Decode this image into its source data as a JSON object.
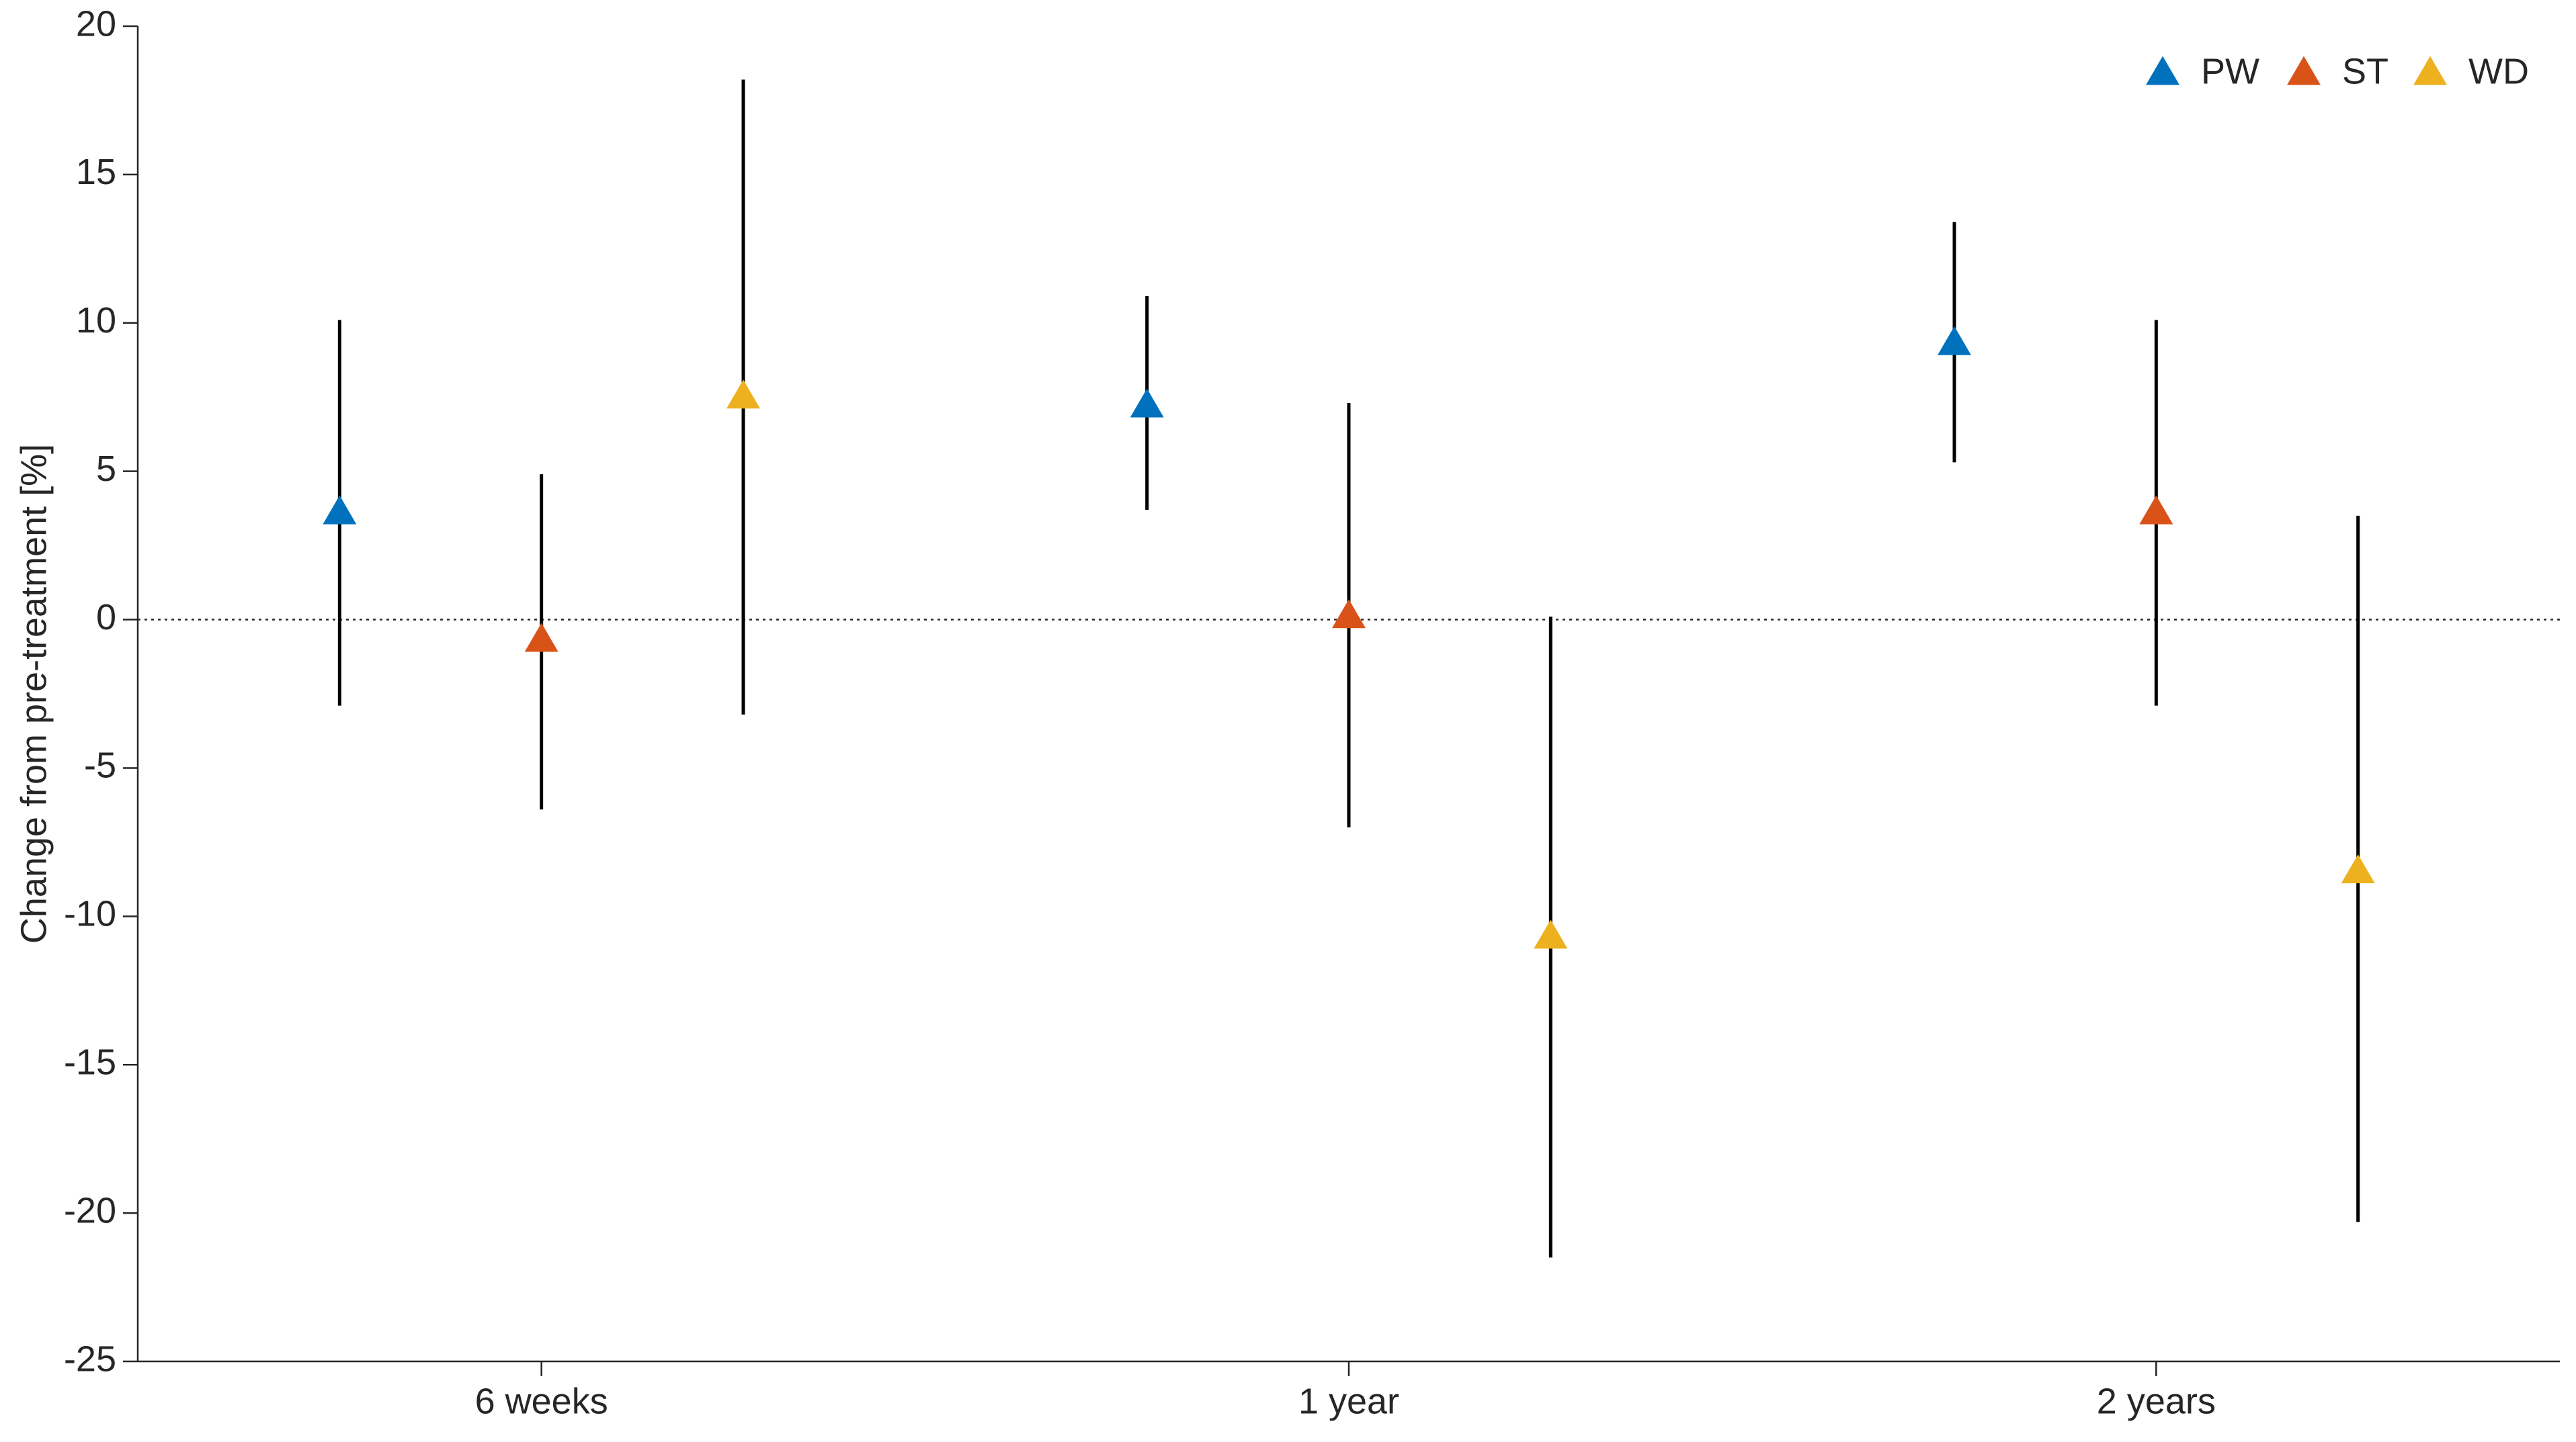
{
  "chart_data": {
    "type": "errorbar",
    "ylabel": "Change from pre-treatment [%]",
    "categories": [
      "6 weeks",
      "1 year",
      "2 years"
    ],
    "series": [
      {
        "name": "PW",
        "color": "#0072BD",
        "values": [
          3.7,
          7.3,
          9.4
        ],
        "ci_low": [
          -2.9,
          3.7,
          5.3
        ],
        "ci_high": [
          10.1,
          10.9,
          13.4
        ]
      },
      {
        "name": "ST",
        "color": "#D95319",
        "values": [
          -0.6,
          0.2,
          3.7
        ],
        "ci_low": [
          -6.4,
          -7.0,
          -2.9
        ],
        "ci_high": [
          4.9,
          7.3,
          10.1
        ]
      },
      {
        "name": "WD",
        "color": "#EDB120",
        "values": [
          7.6,
          -10.6,
          -8.4
        ],
        "ci_low": [
          -3.2,
          -21.5,
          -20.3
        ],
        "ci_high": [
          18.2,
          0.1,
          3.5
        ]
      }
    ],
    "reference_line": 0,
    "ylim": [
      -25,
      20
    ],
    "yticks": [
      -25,
      -20,
      -15,
      -10,
      -5,
      0,
      5,
      10,
      15,
      20
    ],
    "legend": "top-right",
    "marker": "triangle"
  }
}
